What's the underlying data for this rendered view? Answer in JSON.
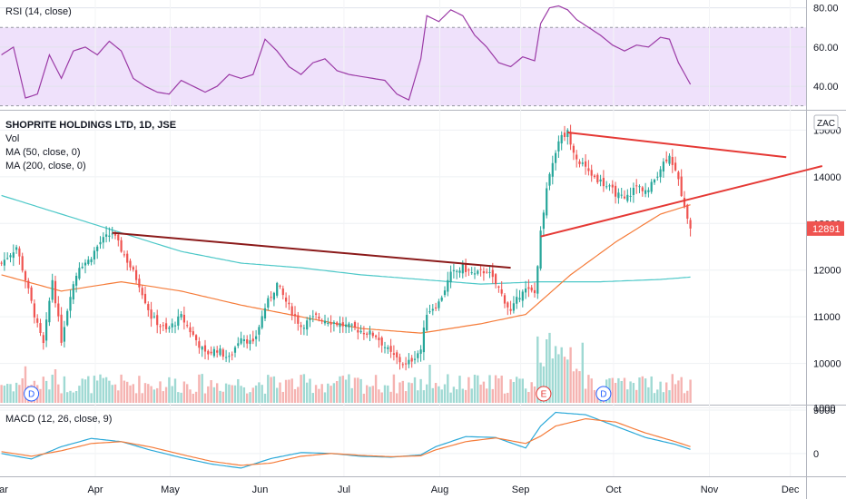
{
  "rsi": {
    "title": "RSI (14, close)",
    "ticks": [
      "80.00",
      "60.00",
      "40.00"
    ]
  },
  "main": {
    "symbol_title": "SHOPRITE HOLDINGS LTD, 1D, JSE",
    "indicators": [
      "Vol",
      "MA (50, close, 0)",
      "MA (200, close, 0)"
    ],
    "currency": "ZAC",
    "ticks": [
      "15000",
      "14000",
      "13000",
      "12000",
      "11000",
      "10000",
      "9000"
    ],
    "last_price": "12891"
  },
  "macd": {
    "title": "MACD (12, 26, close, 9)",
    "ticks": [
      "1000",
      "0"
    ]
  },
  "x_axis": {
    "labels": [
      "Mar",
      "Apr",
      "May",
      "Jun",
      "Jul",
      "Aug",
      "Sep",
      "Oct",
      "Nov",
      "Dec"
    ]
  },
  "events": [
    {
      "label": "D",
      "type": "dividend"
    },
    {
      "label": "E",
      "type": "earnings"
    },
    {
      "label": "D",
      "type": "dividend"
    }
  ],
  "colors": {
    "up": "#26a69a",
    "down": "#ef5350",
    "ma50": "#f57c3a",
    "ma200": "#4dc8c8",
    "rsi_line": "#9b3aa6",
    "rsi_band": "#efe1fb",
    "macd_line": "#2aa8d8",
    "signal_line": "#f57c3a",
    "trendline_upper": "#8b1a1a",
    "trendline_red": "#e53935"
  },
  "chart_data": {
    "type": "candlestick",
    "price_range": [
      9000,
      15300
    ],
    "price_anchors": [
      [
        0,
        12150
      ],
      [
        5,
        12500
      ],
      [
        8,
        11800
      ],
      [
        12,
        10800
      ],
      [
        14,
        10400
      ],
      [
        17,
        11800
      ],
      [
        20,
        10500
      ],
      [
        23,
        11500
      ],
      [
        26,
        12100
      ],
      [
        29,
        12200
      ],
      [
        33,
        12600
      ],
      [
        37,
        12800
      ],
      [
        42,
        12200
      ],
      [
        46,
        11700
      ],
      [
        50,
        11000
      ],
      [
        55,
        10700
      ],
      [
        60,
        11000
      ],
      [
        64,
        10600
      ],
      [
        68,
        10200
      ],
      [
        72,
        10300
      ],
      [
        76,
        10100
      ],
      [
        80,
        10600
      ],
      [
        84,
        10400
      ],
      [
        88,
        11200
      ],
      [
        92,
        11700
      ],
      [
        96,
        11200
      ],
      [
        100,
        10800
      ],
      [
        105,
        11000
      ],
      [
        110,
        10900
      ],
      [
        115,
        10800
      ],
      [
        120,
        10700
      ],
      [
        125,
        10600
      ],
      [
        130,
        10200
      ],
      [
        135,
        9950
      ],
      [
        140,
        10300
      ],
      [
        142,
        11100
      ],
      [
        146,
        11300
      ],
      [
        150,
        11900
      ],
      [
        154,
        12050
      ],
      [
        158,
        11900
      ],
      [
        162,
        12000
      ],
      [
        166,
        11600
      ],
      [
        170,
        11100
      ],
      [
        174,
        11600
      ],
      [
        178,
        11500
      ],
      [
        180,
        12800
      ],
      [
        182,
        13800
      ],
      [
        186,
        14800
      ],
      [
        189,
        14950
      ],
      [
        192,
        14400
      ],
      [
        196,
        14100
      ],
      [
        200,
        13900
      ],
      [
        204,
        13700
      ],
      [
        208,
        13500
      ],
      [
        212,
        13800
      ],
      [
        216,
        13700
      ],
      [
        220,
        14200
      ],
      [
        223,
        14500
      ],
      [
        226,
        13900
      ],
      [
        228,
        13400
      ],
      [
        230,
        12891
      ]
    ],
    "ma50": [
      [
        0,
        11900
      ],
      [
        20,
        11550
      ],
      [
        40,
        11750
      ],
      [
        60,
        11550
      ],
      [
        80,
        11250
      ],
      [
        100,
        11000
      ],
      [
        120,
        10750
      ],
      [
        140,
        10650
      ],
      [
        160,
        10850
      ],
      [
        175,
        11050
      ],
      [
        190,
        11900
      ],
      [
        205,
        12600
      ],
      [
        220,
        13200
      ],
      [
        230,
        13400
      ]
    ],
    "ma200": [
      [
        0,
        13600
      ],
      [
        20,
        13200
      ],
      [
        40,
        12800
      ],
      [
        60,
        12400
      ],
      [
        80,
        12150
      ],
      [
        100,
        12050
      ],
      [
        120,
        11900
      ],
      [
        140,
        11800
      ],
      [
        160,
        11700
      ],
      [
        180,
        11750
      ],
      [
        200,
        11750
      ],
      [
        220,
        11800
      ],
      [
        230,
        11850
      ]
    ],
    "rsi": [
      [
        0,
        56
      ],
      [
        4,
        60
      ],
      [
        8,
        34
      ],
      [
        12,
        36
      ],
      [
        16,
        56
      ],
      [
        20,
        44
      ],
      [
        24,
        58
      ],
      [
        28,
        60
      ],
      [
        32,
        56
      ],
      [
        36,
        63
      ],
      [
        40,
        58
      ],
      [
        44,
        44
      ],
      [
        48,
        40
      ],
      [
        52,
        37
      ],
      [
        56,
        36
      ],
      [
        60,
        43
      ],
      [
        64,
        40
      ],
      [
        68,
        37
      ],
      [
        72,
        40
      ],
      [
        76,
        46
      ],
      [
        80,
        44
      ],
      [
        84,
        46
      ],
      [
        88,
        64
      ],
      [
        92,
        58
      ],
      [
        96,
        50
      ],
      [
        100,
        46
      ],
      [
        104,
        52
      ],
      [
        108,
        54
      ],
      [
        112,
        48
      ],
      [
        116,
        46
      ],
      [
        120,
        45
      ],
      [
        124,
        44
      ],
      [
        128,
        43
      ],
      [
        132,
        36
      ],
      [
        136,
        33
      ],
      [
        140,
        54
      ],
      [
        142,
        76
      ],
      [
        146,
        73
      ],
      [
        150,
        79
      ],
      [
        154,
        76
      ],
      [
        158,
        66
      ],
      [
        162,
        60
      ],
      [
        166,
        52
      ],
      [
        170,
        50
      ],
      [
        174,
        55
      ],
      [
        178,
        53
      ],
      [
        180,
        72
      ],
      [
        183,
        80
      ],
      [
        186,
        81
      ],
      [
        189,
        79
      ],
      [
        192,
        74
      ],
      [
        196,
        70
      ],
      [
        200,
        66
      ],
      [
        204,
        61
      ],
      [
        208,
        58
      ],
      [
        212,
        61
      ],
      [
        216,
        60
      ],
      [
        220,
        65
      ],
      [
        223,
        64
      ],
      [
        226,
        52
      ],
      [
        230,
        41
      ]
    ],
    "rsi_range": [
      28,
      84
    ],
    "rsi_band": [
      30,
      70
    ],
    "macd": [
      [
        0,
        0
      ],
      [
        10,
        -120
      ],
      [
        20,
        150
      ],
      [
        30,
        330
      ],
      [
        40,
        260
      ],
      [
        50,
        70
      ],
      [
        60,
        -90
      ],
      [
        70,
        -230
      ],
      [
        80,
        -320
      ],
      [
        90,
        -110
      ],
      [
        100,
        20
      ],
      [
        110,
        0
      ],
      [
        120,
        -60
      ],
      [
        130,
        -80
      ],
      [
        140,
        -30
      ],
      [
        145,
        150
      ],
      [
        155,
        370
      ],
      [
        165,
        350
      ],
      [
        175,
        120
      ],
      [
        180,
        600
      ],
      [
        185,
        900
      ],
      [
        195,
        850
      ],
      [
        205,
        600
      ],
      [
        215,
        350
      ],
      [
        225,
        200
      ],
      [
        230,
        90
      ]
    ],
    "signal": [
      [
        0,
        40
      ],
      [
        10,
        -60
      ],
      [
        20,
        60
      ],
      [
        30,
        220
      ],
      [
        40,
        260
      ],
      [
        50,
        140
      ],
      [
        60,
        -20
      ],
      [
        70,
        -170
      ],
      [
        80,
        -260
      ],
      [
        90,
        -210
      ],
      [
        100,
        -60
      ],
      [
        110,
        0
      ],
      [
        120,
        -40
      ],
      [
        130,
        -70
      ],
      [
        140,
        -50
      ],
      [
        145,
        80
      ],
      [
        155,
        260
      ],
      [
        165,
        340
      ],
      [
        175,
        220
      ],
      [
        180,
        380
      ],
      [
        185,
        600
      ],
      [
        195,
        760
      ],
      [
        205,
        690
      ],
      [
        215,
        450
      ],
      [
        225,
        260
      ],
      [
        230,
        150
      ]
    ],
    "macd_range": [
      -500,
      1050
    ],
    "trendlines": [
      {
        "name": "upper-resistance",
        "from": [
          37,
          12800
        ],
        "to": [
          170,
          12050
        ],
        "color": "trendline_upper"
      },
      {
        "name": "triangle-top",
        "from": [
          189,
          14950
        ],
        "to": [
          262,
          14420
        ],
        "color": "trendline_red"
      },
      {
        "name": "triangle-bottom",
        "from": [
          180,
          12720
        ],
        "to": [
          274,
          14230
        ],
        "color": "trendline_red"
      }
    ],
    "event_positions": [
      10,
      181,
      201
    ]
  }
}
